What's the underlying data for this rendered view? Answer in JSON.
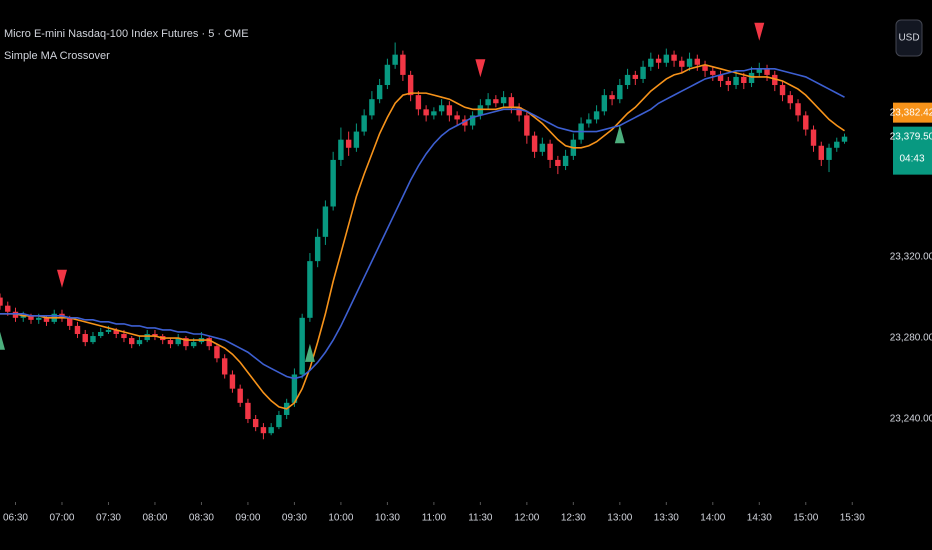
{
  "chart_data": {
    "type": "candlestick",
    "title": "Micro E-mini Nasdaq-100 Index Futures · 5 · CME",
    "subtitle": "Simple MA Crossover",
    "currency": "USD",
    "up_color": "#089981",
    "down_color": "#f23645",
    "xlim": [
      0,
      115
    ],
    "ylim": [
      23200,
      23447
    ],
    "xticks": [
      {
        "value": 2,
        "label": "06:30"
      },
      {
        "value": 8,
        "label": "07:00"
      },
      {
        "value": 14,
        "label": "07:30"
      },
      {
        "value": 20,
        "label": "08:00"
      },
      {
        "value": 26,
        "label": "08:30"
      },
      {
        "value": 32,
        "label": "09:00"
      },
      {
        "value": 38,
        "label": "09:30"
      },
      {
        "value": 44,
        "label": "10:00"
      },
      {
        "value": 50,
        "label": "10:30"
      },
      {
        "value": 56,
        "label": "11:00"
      },
      {
        "value": 62,
        "label": "11:30"
      },
      {
        "value": 68,
        "label": "12:00"
      },
      {
        "value": 74,
        "label": "12:30"
      },
      {
        "value": 80,
        "label": "13:00"
      },
      {
        "value": 86,
        "label": "13:30"
      },
      {
        "value": 92,
        "label": "14:00"
      },
      {
        "value": 98,
        "label": "14:30"
      },
      {
        "value": 104,
        "label": "15:00"
      },
      {
        "value": 110,
        "label": "15:30"
      }
    ],
    "yticks": [
      {
        "value": 23320,
        "label": "23,320.00"
      },
      {
        "value": 23280,
        "label": "23,280.00"
      },
      {
        "value": 23240,
        "label": "23,240.00"
      }
    ],
    "candles": [
      [
        23300,
        23302,
        23294,
        23296
      ],
      [
        23296,
        23298,
        23291,
        23293
      ],
      [
        23293,
        23295,
        23288,
        23290
      ],
      [
        23290,
        23293,
        23288,
        23291
      ],
      [
        23291,
        23292,
        23287,
        23289
      ],
      [
        23289,
        23292,
        23287,
        23290
      ],
      [
        23290,
        23291,
        23286,
        23288
      ],
      [
        23288,
        23294,
        23287,
        23292
      ],
      [
        23292,
        23294,
        23288,
        23290
      ],
      [
        23290,
        23291,
        23284,
        23286
      ],
      [
        23286,
        23288,
        23280,
        23282
      ],
      [
        23282,
        23284,
        23276,
        23278
      ],
      [
        23278,
        23283,
        23277,
        23281
      ],
      [
        23281,
        23285,
        23280,
        23283
      ],
      [
        23283,
        23286,
        23282,
        23284
      ],
      [
        23284,
        23285,
        23280,
        23282
      ],
      [
        23282,
        23284,
        23278,
        23280
      ],
      [
        23280,
        23281,
        23275,
        23277
      ],
      [
        23277,
        23281,
        23276,
        23279
      ],
      [
        23279,
        23284,
        23278,
        23282
      ],
      [
        23282,
        23284,
        23279,
        23281
      ],
      [
        23281,
        23282,
        23277,
        23279
      ],
      [
        23279,
        23280,
        23275,
        23277
      ],
      [
        23277,
        23282,
        23276,
        23280
      ],
      [
        23280,
        23281,
        23274,
        23276
      ],
      [
        23276,
        23280,
        23275,
        23278
      ],
      [
        23278,
        23283,
        23277,
        23280
      ],
      [
        23280,
        23281,
        23274,
        23276
      ],
      [
        23276,
        23277,
        23268,
        23270
      ],
      [
        23270,
        23272,
        23260,
        23262
      ],
      [
        23262,
        23264,
        23253,
        23255
      ],
      [
        23255,
        23257,
        23246,
        23248
      ],
      [
        23248,
        23250,
        23238,
        23240
      ],
      [
        23240,
        23242,
        23234,
        23236
      ],
      [
        23236,
        23238,
        23230,
        23233
      ],
      [
        23233,
        23238,
        23232,
        23236
      ],
      [
        23236,
        23244,
        23235,
        23242
      ],
      [
        23242,
        23250,
        23240,
        23248
      ],
      [
        23248,
        23265,
        23246,
        23262
      ],
      [
        23262,
        23292,
        23260,
        23290
      ],
      [
        23290,
        23322,
        23288,
        23318
      ],
      [
        23318,
        23334,
        23315,
        23330
      ],
      [
        23330,
        23348,
        23326,
        23345
      ],
      [
        23345,
        23372,
        23343,
        23368
      ],
      [
        23368,
        23384,
        23365,
        23378
      ],
      [
        23378,
        23382,
        23370,
        23374
      ],
      [
        23374,
        23386,
        23372,
        23382
      ],
      [
        23382,
        23393,
        23380,
        23390
      ],
      [
        23390,
        23402,
        23388,
        23398
      ],
      [
        23398,
        23408,
        23396,
        23405
      ],
      [
        23405,
        23418,
        23403,
        23415
      ],
      [
        23415,
        23426,
        23413,
        23420
      ],
      [
        23420,
        23422,
        23407,
        23410
      ],
      [
        23410,
        23412,
        23397,
        23400
      ],
      [
        23400,
        23402,
        23390,
        23393
      ],
      [
        23393,
        23395,
        23387,
        23390
      ],
      [
        23390,
        23394,
        23388,
        23392
      ],
      [
        23392,
        23398,
        23390,
        23395
      ],
      [
        23395,
        23397,
        23387,
        23390
      ],
      [
        23390,
        23392,
        23385,
        23388
      ],
      [
        23388,
        23390,
        23382,
        23385
      ],
      [
        23385,
        23392,
        23383,
        23390
      ],
      [
        23390,
        23398,
        23388,
        23395
      ],
      [
        23395,
        23401,
        23393,
        23398
      ],
      [
        23398,
        23400,
        23394,
        23396
      ],
      [
        23396,
        23402,
        23394,
        23399
      ],
      [
        23399,
        23401,
        23391,
        23394
      ],
      [
        23394,
        23396,
        23387,
        23390
      ],
      [
        23390,
        23392,
        23376,
        23380
      ],
      [
        23380,
        23382,
        23369,
        23372
      ],
      [
        23372,
        23379,
        23370,
        23376
      ],
      [
        23376,
        23378,
        23364,
        23368
      ],
      [
        23368,
        23370,
        23361,
        23365
      ],
      [
        23365,
        23373,
        23363,
        23370
      ],
      [
        23370,
        23381,
        23368,
        23378
      ],
      [
        23378,
        23389,
        23376,
        23386
      ],
      [
        23386,
        23391,
        23384,
        23388
      ],
      [
        23388,
        23395,
        23386,
        23392
      ],
      [
        23392,
        23403,
        23390,
        23400
      ],
      [
        23400,
        23402,
        23395,
        23398
      ],
      [
        23398,
        23408,
        23396,
        23405
      ],
      [
        23405,
        23413,
        23403,
        23410
      ],
      [
        23410,
        23412,
        23405,
        23408
      ],
      [
        23408,
        23417,
        23406,
        23414
      ],
      [
        23414,
        23421,
        23412,
        23418
      ],
      [
        23418,
        23420,
        23413,
        23416
      ],
      [
        23416,
        23423,
        23414,
        23420
      ],
      [
        23420,
        23422,
        23414,
        23417
      ],
      [
        23417,
        23419,
        23411,
        23414
      ],
      [
        23414,
        23421,
        23412,
        23418
      ],
      [
        23418,
        23420,
        23412,
        23415
      ],
      [
        23415,
        23417,
        23409,
        23412
      ],
      [
        23412,
        23414,
        23407,
        23410
      ],
      [
        23410,
        23412,
        23404,
        23407
      ],
      [
        23407,
        23409,
        23402,
        23405
      ],
      [
        23405,
        23412,
        23403,
        23409
      ],
      [
        23409,
        23411,
        23403,
        23406
      ],
      [
        23406,
        23414,
        23404,
        23411
      ],
      [
        23411,
        23416,
        23409,
        23413
      ],
      [
        23413,
        23415,
        23407,
        23410
      ],
      [
        23410,
        23412,
        23402,
        23405
      ],
      [
        23405,
        23407,
        23397,
        23400
      ],
      [
        23400,
        23402,
        23393,
        23396
      ],
      [
        23396,
        23398,
        23387,
        23390
      ],
      [
        23390,
        23392,
        23380,
        23383
      ],
      [
        23383,
        23385,
        23372,
        23375
      ],
      [
        23375,
        23377,
        23365,
        23368
      ],
      [
        23368,
        23376,
        23362,
        23374
      ],
      [
        23374,
        23379,
        23372,
        23377
      ],
      [
        23377,
        23381,
        23376,
        23379.5
      ]
    ],
    "series": [
      {
        "color": "#f7931a",
        "values": [
          23292,
          23292,
          23292,
          23291,
          23291,
          23291,
          23290,
          23290,
          23290,
          23290,
          23289,
          23288,
          23287,
          23286,
          23285,
          23284,
          23283,
          23282,
          23281,
          23281,
          23281,
          23280,
          23280,
          23280,
          23279,
          23279,
          23279,
          23279,
          23277,
          23275,
          23272,
          23268,
          23263,
          23258,
          23253,
          23249,
          23246,
          23245,
          23248,
          23255,
          23265,
          23278,
          23292,
          23308,
          23322,
          23336,
          23350,
          23361,
          23371,
          23381,
          23389,
          23396,
          23400,
          23401,
          23401,
          23401,
          23400,
          23399,
          23398,
          23396,
          23394,
          23393,
          23393,
          23393,
          23393,
          23394,
          23394,
          23394,
          23392,
          23389,
          23386,
          23382,
          23378,
          23375,
          23374,
          23374,
          23375,
          23377,
          23380,
          23383,
          23387,
          23391,
          23394,
          23398,
          23402,
          23405,
          23408,
          23410,
          23411,
          23413,
          23414,
          23415,
          23414,
          23413,
          23412,
          23411,
          23410,
          23409,
          23409,
          23409,
          23408,
          23407,
          23405,
          23403,
          23400,
          23396,
          23392,
          23388,
          23385,
          23382.42
        ]
      },
      {
        "color": "#3d5fd1",
        "values": [
          23292,
          23292,
          23292,
          23292,
          23291,
          23291,
          23291,
          23291,
          23291,
          23290,
          23290,
          23289,
          23289,
          23288,
          23288,
          23287,
          23287,
          23286,
          23286,
          23285,
          23285,
          23284,
          23284,
          23283,
          23283,
          23282,
          23282,
          23281,
          23280,
          23279,
          23277,
          23275,
          23273,
          23270,
          23267,
          23265,
          23263,
          23261,
          23260,
          23261,
          23264,
          23268,
          23273,
          23279,
          23286,
          23294,
          23302,
          23310,
          23318,
          23326,
          23334,
          23342,
          23350,
          23358,
          23365,
          23371,
          23376,
          23380,
          23383,
          23385,
          23387,
          23389,
          23390,
          23391,
          23392,
          23393,
          23393,
          23393,
          23392,
          23390,
          23388,
          23386,
          23384,
          23383,
          23382,
          23382,
          23382,
          23382,
          23383,
          23384,
          23385,
          23387,
          23389,
          23391,
          23393,
          23396,
          23398,
          23400,
          23402,
          23404,
          23406,
          23408,
          23409,
          23410,
          23411,
          23412,
          23412,
          23413,
          23413,
          23413,
          23413,
          23412,
          23411,
          23410,
          23409,
          23407,
          23405,
          23403,
          23401,
          23399
        ]
      }
    ],
    "signals": {
      "buy": [
        0,
        40,
        80
      ],
      "sell": [
        8,
        62,
        98
      ],
      "buy_color": "#4caf7d",
      "sell_color": "#f23645"
    },
    "price_tags": [
      {
        "value": 23379.5,
        "label": "23,379.50",
        "countdown": "04:43",
        "color": "#089981"
      },
      {
        "value": 23382.42,
        "label": "23,382.42",
        "color": "#f7931a"
      }
    ]
  }
}
